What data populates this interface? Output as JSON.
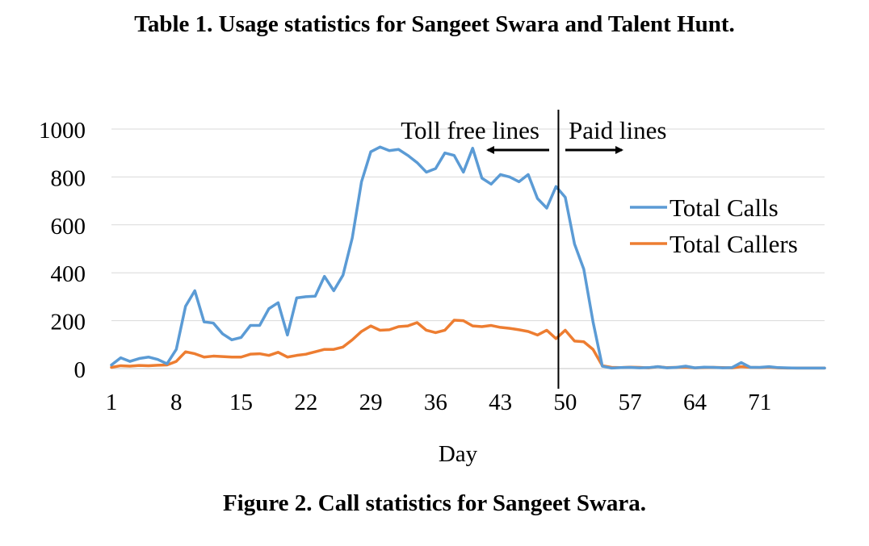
{
  "table_caption": "Table 1. Usage statistics for Sangeet Swara and Talent Hunt.",
  "figure_caption": "Figure 2. Call statistics for Sangeet Swara.",
  "chart_data": {
    "type": "line",
    "title": "",
    "xlabel": "Day",
    "ylabel": "",
    "xlim": [
      1,
      78
    ],
    "ylim": [
      0,
      1000
    ],
    "x_ticks": [
      1,
      8,
      15,
      22,
      29,
      36,
      43,
      50,
      57,
      64,
      71
    ],
    "y_ticks": [
      0,
      200,
      400,
      600,
      800,
      1000
    ],
    "grid": "horizontal",
    "legend_position": "right",
    "x": [
      1,
      2,
      3,
      4,
      5,
      6,
      7,
      8,
      9,
      10,
      11,
      12,
      13,
      14,
      15,
      16,
      17,
      18,
      19,
      20,
      21,
      22,
      23,
      24,
      25,
      26,
      27,
      28,
      29,
      30,
      31,
      32,
      33,
      34,
      35,
      36,
      37,
      38,
      39,
      40,
      41,
      42,
      43,
      44,
      45,
      46,
      47,
      48,
      49,
      50,
      51,
      52,
      53,
      54,
      55,
      56,
      57,
      58,
      59,
      60,
      61,
      62,
      63,
      64,
      65,
      66,
      67,
      68,
      69,
      70,
      71,
      72,
      73,
      74,
      75,
      76,
      77,
      78
    ],
    "series": [
      {
        "name": "Total Calls",
        "color": "#5b9bd5",
        "values": [
          15,
          45,
          30,
          42,
          48,
          38,
          20,
          80,
          260,
          325,
          195,
          190,
          145,
          120,
          130,
          180,
          180,
          250,
          275,
          140,
          295,
          300,
          302,
          385,
          325,
          390,
          545,
          780,
          905,
          925,
          910,
          915,
          890,
          860,
          820,
          835,
          900,
          890,
          820,
          920,
          795,
          770,
          810,
          800,
          780,
          810,
          710,
          670,
          760,
          715,
          520,
          415,
          195,
          10,
          2,
          4,
          5,
          3,
          4,
          8,
          3,
          5,
          10,
          3,
          6,
          5,
          3,
          4,
          25,
          5,
          5,
          8,
          4,
          3,
          2,
          2,
          2,
          2
        ]
      },
      {
        "name": "Total Callers",
        "color": "#ed7d31",
        "values": [
          5,
          12,
          10,
          13,
          12,
          14,
          15,
          30,
          70,
          62,
          48,
          52,
          50,
          48,
          48,
          60,
          62,
          55,
          68,
          48,
          55,
          60,
          70,
          80,
          80,
          90,
          120,
          155,
          178,
          160,
          162,
          175,
          178,
          192,
          160,
          150,
          160,
          202,
          200,
          178,
          175,
          180,
          172,
          168,
          162,
          155,
          140,
          160,
          125,
          160,
          115,
          112,
          80,
          12,
          5,
          4,
          6,
          5,
          3,
          8,
          4,
          5,
          6,
          3,
          4,
          5,
          4,
          3,
          8,
          5,
          4,
          6,
          3,
          2,
          2,
          2,
          2,
          2
        ]
      }
    ],
    "annotations": [
      {
        "text": "Toll free lines",
        "arrow": "left"
      },
      {
        "text": "Paid lines",
        "arrow": "right"
      }
    ],
    "divider_x": 49
  }
}
